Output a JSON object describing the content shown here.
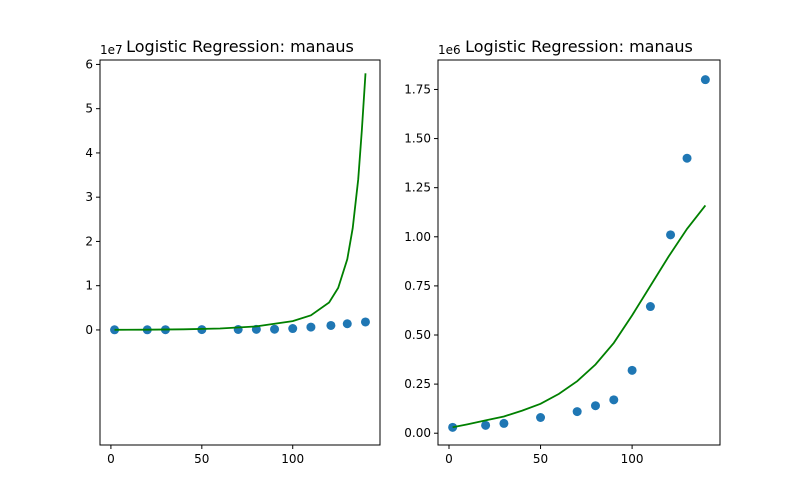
{
  "chart_data": [
    {
      "type": "scatter",
      "title": "Logistic Regression: manaus",
      "y_offset_label": "1e7",
      "xlim": [
        -6,
        148
      ],
      "ylim": [
        -2.6,
        6.1
      ],
      "xticks": [
        0,
        50,
        100
      ],
      "yticks": [
        0,
        1,
        2,
        3,
        4,
        5,
        6
      ],
      "scatter_color": "#1f77b4",
      "line_color": "#008000",
      "points": {
        "x": [
          2,
          20,
          30,
          50,
          70,
          80,
          90,
          100,
          110,
          121,
          130,
          140
        ],
        "y": [
          0.003,
          0.004,
          0.005,
          0.008,
          0.011,
          0.014,
          0.017,
          0.032,
          0.065,
          0.101,
          0.14,
          0.18
        ]
      },
      "fit_line": {
        "x": [
          2,
          20,
          40,
          60,
          80,
          100,
          110,
          120,
          125,
          130,
          133,
          136,
          138,
          140
        ],
        "y": [
          0.003,
          0.006,
          0.014,
          0.033,
          0.08,
          0.2,
          0.33,
          0.62,
          0.95,
          1.6,
          2.3,
          3.4,
          4.5,
          5.8
        ]
      }
    },
    {
      "type": "scatter",
      "title": "Logistic Regression: manaus",
      "y_offset_label": "1e6",
      "xlim": [
        -6,
        148
      ],
      "ylim": [
        -0.06,
        1.9
      ],
      "xticks": [
        0,
        50,
        100
      ],
      "yticks": [
        0.0,
        0.25,
        0.5,
        0.75,
        1.0,
        1.25,
        1.5,
        1.75
      ],
      "ytick_labels": [
        "0.00",
        "0.25",
        "0.50",
        "0.75",
        "1.00",
        "1.25",
        "1.50",
        "1.75"
      ],
      "scatter_color": "#1f77b4",
      "line_color": "#008000",
      "points": {
        "x": [
          2,
          20,
          30,
          50,
          70,
          80,
          90,
          100,
          110,
          121,
          130,
          140
        ],
        "y": [
          0.03,
          0.04,
          0.05,
          0.08,
          0.11,
          0.14,
          0.17,
          0.32,
          0.645,
          1.01,
          1.4,
          1.8
        ]
      },
      "fit_line": {
        "x": [
          2,
          10,
          20,
          30,
          40,
          50,
          60,
          70,
          80,
          90,
          100,
          110,
          120,
          130,
          140
        ],
        "y": [
          0.03,
          0.045,
          0.065,
          0.085,
          0.115,
          0.15,
          0.2,
          0.265,
          0.35,
          0.46,
          0.6,
          0.75,
          0.9,
          1.04,
          1.16
        ]
      }
    }
  ]
}
